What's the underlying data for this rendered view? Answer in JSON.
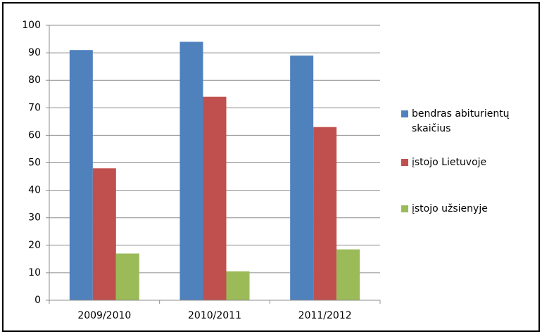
{
  "chart_data": {
    "type": "bar",
    "categories": [
      "2009/2010",
      "2010/2011",
      "2011/2012"
    ],
    "series": [
      {
        "name": "bendras abiturientų skaičius",
        "color": "#4f81bd",
        "values": [
          91,
          94,
          89
        ]
      },
      {
        "name": "įstojo Lietuvoje",
        "color": "#c0504d",
        "values": [
          48,
          74,
          63
        ]
      },
      {
        "name": "įstojo užsienyje",
        "color": "#9bbb59",
        "values": [
          17,
          10.5,
          18.5
        ]
      }
    ],
    "ylim": [
      0,
      100
    ],
    "yticks": [
      0,
      10,
      20,
      30,
      40,
      50,
      60,
      70,
      80,
      90,
      100
    ],
    "grid": true,
    "legend": "right"
  }
}
